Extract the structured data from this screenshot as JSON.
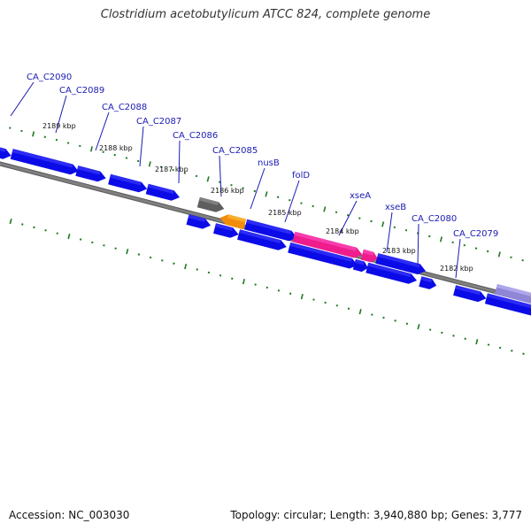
{
  "title": "Clostridium acetobutylicum ATCC 824, complete genome",
  "footer": {
    "accession": "Accession: NC_003030",
    "summary": "Topology: circular; Length: 3,940,880 bp; Genes: 3,777"
  },
  "colors": {
    "forward_gene": "#0b0be8",
    "reverse_gene": "#0b0be8",
    "rna_gene_gray": "#5e5e5e",
    "orange_gene": "#f28c0a",
    "pink_gene": "#ee1c8c",
    "lavender_gene": "#8f86d6",
    "backbone": "#808080",
    "tick_green": "#1e7a1e",
    "label_blue": "#1a1ab4",
    "kbp_text": "#111111"
  },
  "gene_labels": [
    "CA_C2090",
    "CA_C2089",
    "CA_C2088",
    "CA_C2087",
    "CA_C2086",
    "CA_C2085",
    "nusB",
    "folD",
    "xseA",
    "xseB",
    "CA_C2080",
    "CA_C2079"
  ],
  "kbp_ticks": [
    "2189 kbp",
    "2188 kbp",
    "2187 kbp",
    "2186 kbp",
    "2185 kbp",
    "2184 kbp",
    "2183 kbp",
    "2182 kbp"
  ]
}
